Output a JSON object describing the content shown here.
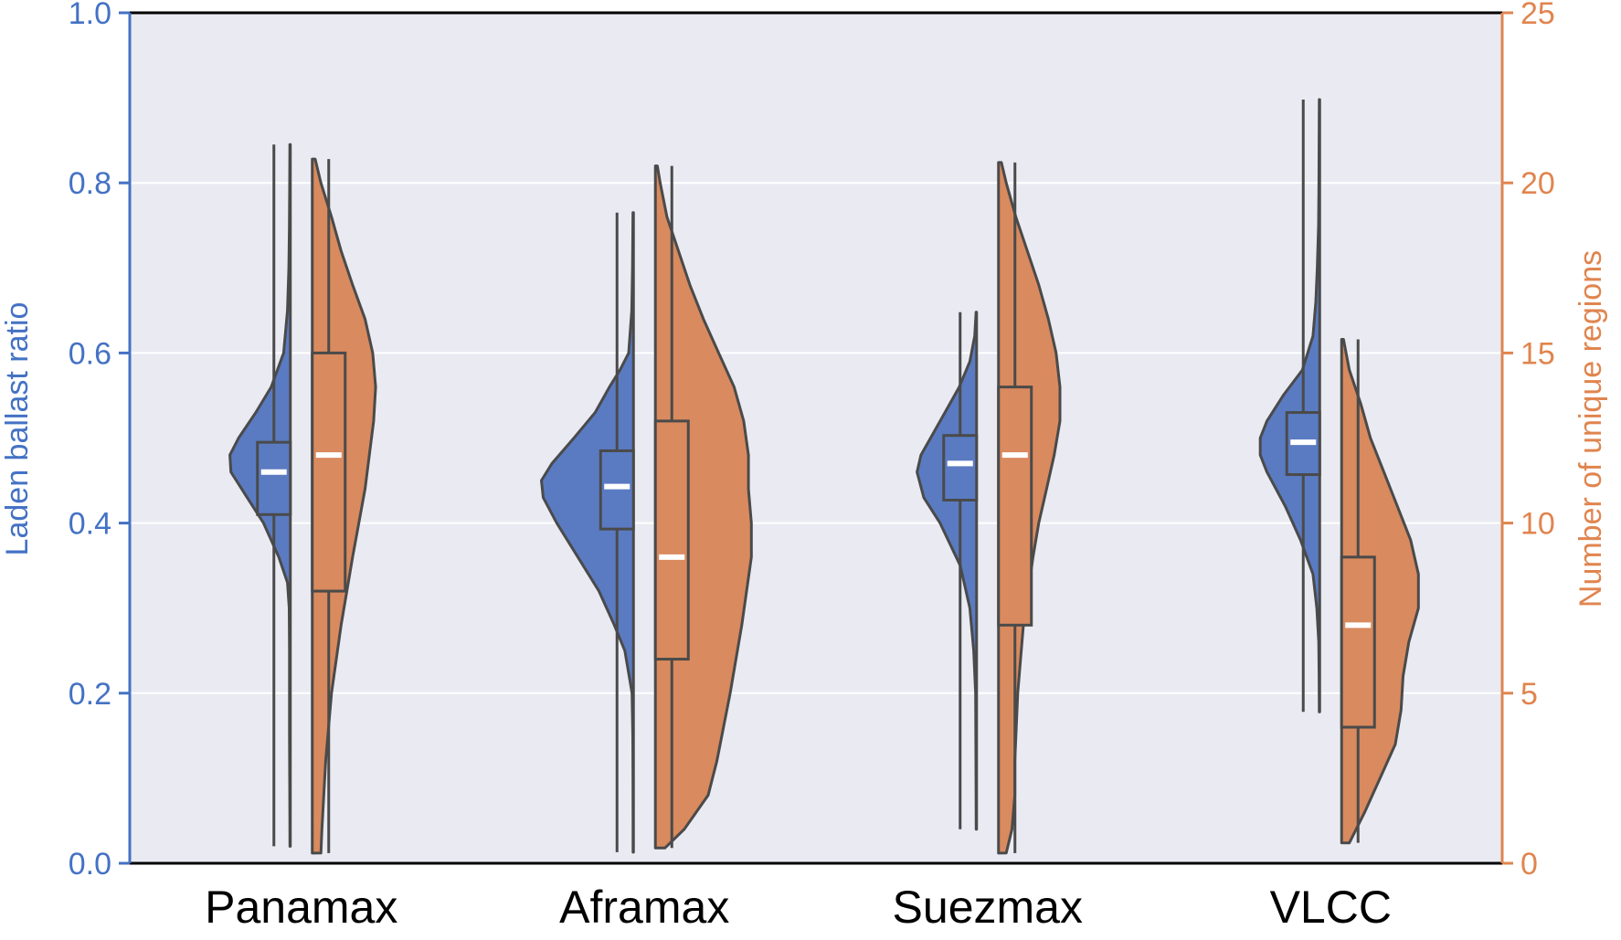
{
  "chart_data": {
    "type": "violin",
    "categories": [
      "Panamax",
      "Aframax",
      "Suezmax",
      "VLCC"
    ],
    "ylabel": "Laden ballast ratio",
    "ylabel_right": "Number of unique regions",
    "ylim": [
      0,
      1.0
    ],
    "ylim_right": [
      0,
      25
    ],
    "yticks": [
      "0.0",
      "0.2",
      "0.4",
      "0.6",
      "0.8",
      "1.0"
    ],
    "yticks_right": [
      "0",
      "5",
      "10",
      "15",
      "20",
      "25"
    ],
    "grid": "horizontal",
    "colors": {
      "left_axis": "#4472c4",
      "right_axis": "#e0854f",
      "ratio_fill": "#5a7bc2",
      "regions_fill": "#d98a5e",
      "background": "#e9eaf2",
      "outline": "#4a4a4a"
    },
    "series": [
      {
        "axis": "left",
        "violins": [
          {
            "min": 0.02,
            "q1": 0.41,
            "median": 0.46,
            "q3": 0.495,
            "max": 0.845,
            "density": [
              [
                0.02,
                0.004
              ],
              [
                0.05,
                0.005
              ],
              [
                0.1,
                0.007
              ],
              [
                0.15,
                0.009
              ],
              [
                0.2,
                0.009
              ],
              [
                0.25,
                0.009
              ],
              [
                0.3,
                0.012
              ],
              [
                0.33,
                0.03
              ],
              [
                0.36,
                0.12
              ],
              [
                0.4,
                0.28
              ],
              [
                0.43,
                0.45
              ],
              [
                0.46,
                0.62
              ],
              [
                0.48,
                0.63
              ],
              [
                0.5,
                0.54
              ],
              [
                0.53,
                0.36
              ],
              [
                0.56,
                0.2
              ],
              [
                0.6,
                0.07
              ],
              [
                0.65,
                0.03
              ],
              [
                0.7,
                0.016
              ],
              [
                0.75,
                0.01
              ],
              [
                0.8,
                0.007
              ],
              [
                0.845,
                0.005
              ]
            ]
          },
          {
            "min": 0.013,
            "q1": 0.393,
            "median": 0.443,
            "q3": 0.485,
            "max": 0.765,
            "density": [
              [
                0.013,
                0.004
              ],
              [
                0.05,
                0.004
              ],
              [
                0.1,
                0.005
              ],
              [
                0.15,
                0.007
              ],
              [
                0.2,
                0.015
              ],
              [
                0.25,
                0.09
              ],
              [
                0.28,
                0.2
              ],
              [
                0.32,
                0.36
              ],
              [
                0.36,
                0.58
              ],
              [
                0.4,
                0.8
              ],
              [
                0.43,
                0.94
              ],
              [
                0.45,
                0.96
              ],
              [
                0.47,
                0.85
              ],
              [
                0.5,
                0.62
              ],
              [
                0.53,
                0.4
              ],
              [
                0.56,
                0.25
              ],
              [
                0.58,
                0.14
              ],
              [
                0.6,
                0.05
              ],
              [
                0.65,
                0.018
              ],
              [
                0.7,
                0.01
              ],
              [
                0.765,
                0.005
              ]
            ]
          },
          {
            "min": 0.04,
            "q1": 0.427,
            "median": 0.47,
            "q3": 0.503,
            "max": 0.648,
            "density": [
              [
                0.04,
                0.004
              ],
              [
                0.1,
                0.006
              ],
              [
                0.15,
                0.008
              ],
              [
                0.2,
                0.01
              ],
              [
                0.25,
                0.03
              ],
              [
                0.3,
                0.07
              ],
              [
                0.35,
                0.17
              ],
              [
                0.4,
                0.38
              ],
              [
                0.43,
                0.55
              ],
              [
                0.46,
                0.62
              ],
              [
                0.48,
                0.58
              ],
              [
                0.5,
                0.48
              ],
              [
                0.53,
                0.33
              ],
              [
                0.56,
                0.18
              ],
              [
                0.59,
                0.07
              ],
              [
                0.62,
                0.02
              ],
              [
                0.648,
                0.005
              ]
            ]
          },
          {
            "min": 0.178,
            "q1": 0.457,
            "median": 0.495,
            "q3": 0.53,
            "max": 0.898,
            "density": [
              [
                0.178,
                0.004
              ],
              [
                0.22,
                0.006
              ],
              [
                0.26,
                0.01
              ],
              [
                0.3,
                0.03
              ],
              [
                0.34,
                0.07
              ],
              [
                0.38,
                0.2
              ],
              [
                0.42,
                0.36
              ],
              [
                0.46,
                0.55
              ],
              [
                0.48,
                0.62
              ],
              [
                0.5,
                0.62
              ],
              [
                0.52,
                0.55
              ],
              [
                0.55,
                0.38
              ],
              [
                0.58,
                0.18
              ],
              [
                0.62,
                0.07
              ],
              [
                0.66,
                0.04
              ],
              [
                0.7,
                0.025
              ],
              [
                0.75,
                0.012
              ],
              [
                0.8,
                0.008
              ],
              [
                0.85,
                0.006
              ],
              [
                0.898,
                0.004
              ]
            ]
          }
        ]
      },
      {
        "axis": "right",
        "violins": [
          {
            "min": 0.3,
            "q1": 8,
            "median": 12,
            "q3": 15,
            "max": 20.7,
            "density": [
              [
                0.3,
                0.09
              ],
              [
                1,
                0.1
              ],
              [
                3,
                0.14
              ],
              [
                5,
                0.2
              ],
              [
                7,
                0.3
              ],
              [
                9,
                0.42
              ],
              [
                11,
                0.55
              ],
              [
                13,
                0.64
              ],
              [
                14,
                0.66
              ],
              [
                15,
                0.63
              ],
              [
                16,
                0.55
              ],
              [
                17,
                0.42
              ],
              [
                18,
                0.3
              ],
              [
                19,
                0.2
              ],
              [
                20,
                0.09
              ],
              [
                20.7,
                0.03
              ]
            ]
          },
          {
            "min": 0.45,
            "q1": 6,
            "median": 9,
            "q3": 13,
            "max": 20.5,
            "density": [
              [
                0.45,
                0.1
              ],
              [
                1,
                0.3
              ],
              [
                2,
                0.55
              ],
              [
                3,
                0.64
              ],
              [
                5,
                0.78
              ],
              [
                7,
                0.9
              ],
              [
                9,
                1.0
              ],
              [
                10,
                1.0
              ],
              [
                11,
                0.97
              ],
              [
                12,
                0.97
              ],
              [
                13,
                0.92
              ],
              [
                14,
                0.82
              ],
              [
                15,
                0.66
              ],
              [
                16,
                0.5
              ],
              [
                17,
                0.36
              ],
              [
                18,
                0.24
              ],
              [
                19,
                0.12
              ],
              [
                20,
                0.05
              ],
              [
                20.5,
                0.02
              ]
            ]
          },
          {
            "min": 0.3,
            "q1": 7,
            "median": 12,
            "q3": 14,
            "max": 20.6,
            "density": [
              [
                0.3,
                0.08
              ],
              [
                1,
                0.14
              ],
              [
                2,
                0.17
              ],
              [
                3,
                0.17
              ],
              [
                5,
                0.2
              ],
              [
                7,
                0.26
              ],
              [
                9,
                0.36
              ],
              [
                10,
                0.42
              ],
              [
                11,
                0.5
              ],
              [
                12,
                0.58
              ],
              [
                13,
                0.64
              ],
              [
                14,
                0.64
              ],
              [
                15,
                0.6
              ],
              [
                16,
                0.52
              ],
              [
                17,
                0.42
              ],
              [
                18,
                0.3
              ],
              [
                19,
                0.18
              ],
              [
                20,
                0.08
              ],
              [
                20.6,
                0.03
              ]
            ]
          },
          {
            "min": 0.6,
            "q1": 4,
            "median": 7,
            "q3": 9,
            "max": 15.4,
            "density": [
              [
                0.6,
                0.08
              ],
              [
                1.5,
                0.24
              ],
              [
                2.5,
                0.4
              ],
              [
                3.5,
                0.56
              ],
              [
                4.5,
                0.62
              ],
              [
                5.5,
                0.64
              ],
              [
                6.5,
                0.7
              ],
              [
                7.5,
                0.8
              ],
              [
                8.5,
                0.8
              ],
              [
                9.5,
                0.72
              ],
              [
                10.5,
                0.58
              ],
              [
                11.5,
                0.44
              ],
              [
                12.5,
                0.3
              ],
              [
                13.5,
                0.2
              ],
              [
                14.5,
                0.08
              ],
              [
                15.4,
                0.02
              ]
            ]
          }
        ]
      }
    ]
  }
}
